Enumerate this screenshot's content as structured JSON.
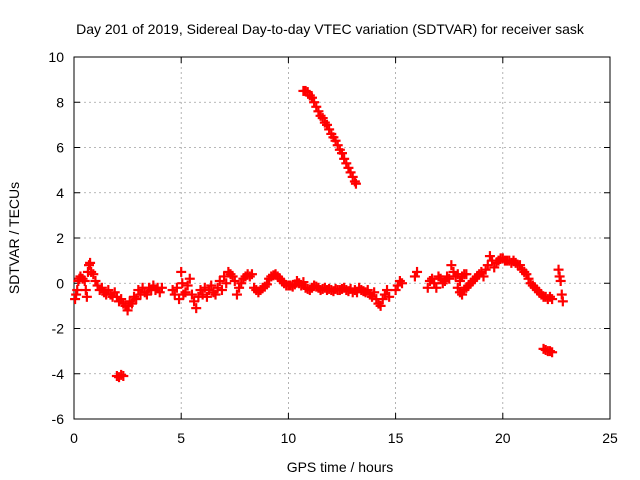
{
  "chart_data": {
    "type": "scatter",
    "title": "Day 201 of 2019, Sidereal Day-to-day VTEC variation (SDTVAR) for receiver sask",
    "xlabel": "GPS time / hours",
    "ylabel": "SDTVAR / TECUs",
    "xlim": [
      0,
      25
    ],
    "ylim": [
      -6,
      10
    ],
    "xticks": [
      0,
      5,
      10,
      15,
      20,
      25
    ],
    "yticks": [
      -6,
      -4,
      -2,
      0,
      2,
      4,
      6,
      8,
      10
    ],
    "grid": true,
    "marker": "+",
    "series_color": "#ff0000",
    "series": [
      {
        "name": "SDTVAR",
        "points": [
          [
            0.05,
            -0.7
          ],
          [
            0.1,
            -0.5
          ],
          [
            0.15,
            -0.3
          ],
          [
            0.2,
            0.1
          ],
          [
            0.25,
            0.2
          ],
          [
            0.3,
            0.3
          ],
          [
            0.4,
            0.2
          ],
          [
            0.5,
            0.1
          ],
          [
            0.55,
            -0.3
          ],
          [
            0.6,
            -0.6
          ],
          [
            0.65,
            0.5
          ],
          [
            0.7,
            0.8
          ],
          [
            0.75,
            0.9
          ],
          [
            0.8,
            0.5
          ],
          [
            0.9,
            0.4
          ],
          [
            1.0,
            0.1
          ],
          [
            1.1,
            -0.1
          ],
          [
            1.2,
            -0.3
          ],
          [
            1.3,
            -0.2
          ],
          [
            1.4,
            -0.4
          ],
          [
            1.5,
            -0.5
          ],
          [
            1.6,
            -0.3
          ],
          [
            1.7,
            -0.5
          ],
          [
            1.8,
            -0.6
          ],
          [
            1.9,
            -0.4
          ],
          [
            2.0,
            -0.6
          ],
          [
            2.1,
            -0.8
          ],
          [
            2.2,
            -0.7
          ],
          [
            2.3,
            -0.9
          ],
          [
            2.4,
            -1.0
          ],
          [
            2.5,
            -1.2
          ],
          [
            2.55,
            -1.0
          ],
          [
            2.6,
            -0.8
          ],
          [
            2.7,
            -0.9
          ],
          [
            2.8,
            -0.6
          ],
          [
            2.9,
            -0.7
          ],
          [
            3.0,
            -0.3
          ],
          [
            3.1,
            -0.5
          ],
          [
            3.2,
            -0.2
          ],
          [
            3.3,
            -0.4
          ],
          [
            3.4,
            -0.5
          ],
          [
            3.5,
            -0.2
          ],
          [
            3.6,
            -0.3
          ],
          [
            3.7,
            -0.1
          ],
          [
            3.8,
            -0.3
          ],
          [
            3.9,
            -0.2
          ],
          [
            4.0,
            -0.4
          ],
          [
            4.1,
            -0.2
          ],
          [
            2.0,
            -4.1
          ],
          [
            2.1,
            -4.15
          ],
          [
            2.2,
            -4.05
          ],
          [
            2.3,
            -4.1
          ],
          [
            4.6,
            -0.3
          ],
          [
            4.7,
            -0.5
          ],
          [
            4.8,
            -0.2
          ],
          [
            4.9,
            -0.7
          ],
          [
            5.0,
            0.5
          ],
          [
            5.05,
            0.0
          ],
          [
            5.1,
            -0.5
          ],
          [
            5.2,
            -0.4
          ],
          [
            5.3,
            -0.1
          ],
          [
            5.4,
            0.2
          ],
          [
            5.5,
            -0.5
          ],
          [
            5.6,
            -0.8
          ],
          [
            5.7,
            -1.1
          ],
          [
            5.8,
            -0.6
          ],
          [
            5.9,
            -0.3
          ],
          [
            6.0,
            -0.5
          ],
          [
            6.1,
            -0.2
          ],
          [
            6.2,
            -0.6
          ],
          [
            6.3,
            -0.3
          ],
          [
            6.4,
            -0.1
          ],
          [
            6.5,
            -0.4
          ],
          [
            6.6,
            -0.5
          ],
          [
            6.7,
            -0.2
          ],
          [
            6.8,
            0.1
          ],
          [
            6.9,
            -0.3
          ],
          [
            7.0,
            0.3
          ],
          [
            7.1,
            0.0
          ],
          [
            7.2,
            0.5
          ],
          [
            7.3,
            0.4
          ],
          [
            7.4,
            0.3
          ],
          [
            7.5,
            0.1
          ],
          [
            7.6,
            -0.5
          ],
          [
            7.7,
            -0.2
          ],
          [
            7.8,
            0.0
          ],
          [
            7.9,
            0.2
          ],
          [
            8.0,
            0.3
          ],
          [
            8.1,
            0.4
          ],
          [
            8.2,
            0.3
          ],
          [
            8.3,
            0.4
          ],
          [
            8.4,
            -0.2
          ],
          [
            8.5,
            -0.3
          ],
          [
            8.6,
            -0.4
          ],
          [
            8.7,
            -0.3
          ],
          [
            8.8,
            -0.2
          ],
          [
            8.9,
            -0.15
          ],
          [
            9.0,
            -0.05
          ],
          [
            9.1,
            0.2
          ],
          [
            9.2,
            0.3
          ],
          [
            9.3,
            0.35
          ],
          [
            9.4,
            0.4
          ],
          [
            9.5,
            0.3
          ],
          [
            9.6,
            0.2
          ],
          [
            9.7,
            0.1
          ],
          [
            9.8,
            0.0
          ],
          [
            9.9,
            -0.1
          ],
          [
            10.0,
            -0.1
          ],
          [
            10.1,
            -0.1
          ],
          [
            10.2,
            -0.15
          ],
          [
            10.3,
            -0.05
          ],
          [
            10.4,
            0.1
          ],
          [
            10.5,
            0.0
          ],
          [
            10.6,
            -0.1
          ],
          [
            10.7,
            0.05
          ],
          [
            10.8,
            -0.2
          ],
          [
            10.9,
            -0.25
          ],
          [
            11.0,
            -0.3
          ],
          [
            11.1,
            -0.2
          ],
          [
            11.2,
            -0.1
          ],
          [
            11.3,
            -0.15
          ],
          [
            11.4,
            -0.2
          ],
          [
            11.5,
            -0.3
          ],
          [
            11.6,
            -0.25
          ],
          [
            11.7,
            -0.2
          ],
          [
            11.8,
            -0.3
          ],
          [
            11.9,
            -0.25
          ],
          [
            12.0,
            -0.3
          ],
          [
            12.1,
            -0.35
          ],
          [
            12.2,
            -0.25
          ],
          [
            12.3,
            -0.3
          ],
          [
            12.4,
            -0.3
          ],
          [
            12.5,
            -0.25
          ],
          [
            12.6,
            -0.2
          ],
          [
            12.7,
            -0.3
          ],
          [
            12.8,
            -0.35
          ],
          [
            12.9,
            -0.25
          ],
          [
            13.0,
            -0.4
          ],
          [
            13.1,
            -0.3
          ],
          [
            13.2,
            -0.4
          ],
          [
            13.3,
            -0.2
          ],
          [
            13.4,
            -0.3
          ],
          [
            13.5,
            -0.35
          ],
          [
            13.6,
            -0.4
          ],
          [
            13.7,
            -0.3
          ],
          [
            13.8,
            -0.5
          ],
          [
            13.9,
            -0.6
          ],
          [
            14.0,
            -0.4
          ],
          [
            14.1,
            -0.7
          ],
          [
            14.2,
            -0.9
          ],
          [
            14.3,
            -1.0
          ],
          [
            14.4,
            -0.7
          ],
          [
            14.5,
            -0.5
          ],
          [
            14.6,
            -0.3
          ],
          [
            14.7,
            -0.6
          ],
          [
            10.7,
            8.5
          ],
          [
            10.8,
            8.5
          ],
          [
            10.9,
            8.45
          ],
          [
            11.0,
            8.3
          ],
          [
            11.1,
            8.2
          ],
          [
            11.2,
            8.0
          ],
          [
            11.3,
            7.8
          ],
          [
            11.4,
            7.6
          ],
          [
            11.5,
            7.4
          ],
          [
            11.6,
            7.3
          ],
          [
            11.7,
            7.1
          ],
          [
            11.8,
            7.0
          ],
          [
            11.9,
            6.8
          ],
          [
            12.0,
            6.6
          ],
          [
            12.1,
            6.45
          ],
          [
            12.2,
            6.3
          ],
          [
            12.3,
            6.1
          ],
          [
            12.4,
            5.9
          ],
          [
            12.5,
            5.75
          ],
          [
            12.6,
            5.5
          ],
          [
            12.7,
            5.3
          ],
          [
            12.8,
            5.1
          ],
          [
            12.9,
            4.9
          ],
          [
            13.0,
            4.7
          ],
          [
            13.1,
            4.5
          ],
          [
            13.15,
            4.4
          ],
          [
            15.0,
            -0.3
          ],
          [
            15.1,
            -0.1
          ],
          [
            15.2,
            0.1
          ],
          [
            15.3,
            0.0
          ],
          [
            15.9,
            0.3
          ],
          [
            16.0,
            0.5
          ],
          [
            16.5,
            -0.2
          ],
          [
            16.6,
            0.1
          ],
          [
            16.7,
            0.2
          ],
          [
            16.8,
            0.0
          ],
          [
            16.9,
            -0.2
          ],
          [
            17.0,
            0.3
          ],
          [
            17.1,
            0.2
          ],
          [
            17.2,
            0.0
          ],
          [
            17.3,
            0.1
          ],
          [
            17.4,
            0.3
          ],
          [
            17.5,
            0.2
          ],
          [
            17.6,
            0.8
          ],
          [
            17.7,
            0.5
          ],
          [
            17.8,
            0.3
          ],
          [
            17.9,
            0.4
          ],
          [
            18.0,
            0.1
          ],
          [
            18.1,
            0.3
          ],
          [
            18.2,
            0.4
          ],
          [
            18.3,
            0.4
          ],
          [
            17.9,
            -0.2
          ],
          [
            18.0,
            -0.4
          ],
          [
            18.1,
            -0.5
          ],
          [
            18.2,
            -0.3
          ],
          [
            18.3,
            -0.2
          ],
          [
            18.4,
            -0.1
          ],
          [
            18.5,
            0.0
          ],
          [
            18.6,
            0.1
          ],
          [
            18.7,
            0.2
          ],
          [
            18.8,
            0.3
          ],
          [
            18.9,
            0.4
          ],
          [
            19.0,
            0.5
          ],
          [
            19.1,
            0.3
          ],
          [
            19.2,
            0.6
          ],
          [
            19.3,
            0.8
          ],
          [
            19.4,
            1.2
          ],
          [
            19.5,
            1.0
          ],
          [
            19.6,
            0.7
          ],
          [
            19.7,
            0.9
          ],
          [
            19.8,
            1.0
          ],
          [
            19.9,
            1.1
          ],
          [
            20.0,
            1.1
          ],
          [
            20.1,
            1.0
          ],
          [
            20.2,
            1.0
          ],
          [
            20.3,
            1.0
          ],
          [
            20.4,
            0.9
          ],
          [
            20.5,
            1.0
          ],
          [
            20.6,
            0.9
          ],
          [
            20.7,
            0.8
          ],
          [
            20.8,
            0.8
          ],
          [
            20.9,
            0.6
          ],
          [
            21.0,
            0.5
          ],
          [
            21.1,
            0.4
          ],
          [
            21.2,
            0.2
          ],
          [
            21.3,
            0.0
          ],
          [
            21.4,
            -0.1
          ],
          [
            21.5,
            -0.2
          ],
          [
            21.6,
            -0.3
          ],
          [
            21.7,
            -0.4
          ],
          [
            21.8,
            -0.5
          ],
          [
            21.9,
            -0.6
          ],
          [
            22.0,
            -0.6
          ],
          [
            22.1,
            -0.7
          ],
          [
            22.2,
            -0.6
          ],
          [
            22.3,
            -0.7
          ],
          [
            21.9,
            -2.9
          ],
          [
            22.0,
            -2.95
          ],
          [
            22.1,
            -3.0
          ],
          [
            22.2,
            -3.0
          ],
          [
            22.3,
            -3.05
          ],
          [
            22.6,
            0.6
          ],
          [
            22.65,
            0.3
          ],
          [
            22.7,
            0.1
          ],
          [
            22.75,
            -0.5
          ],
          [
            22.8,
            -0.8
          ]
        ]
      }
    ]
  }
}
